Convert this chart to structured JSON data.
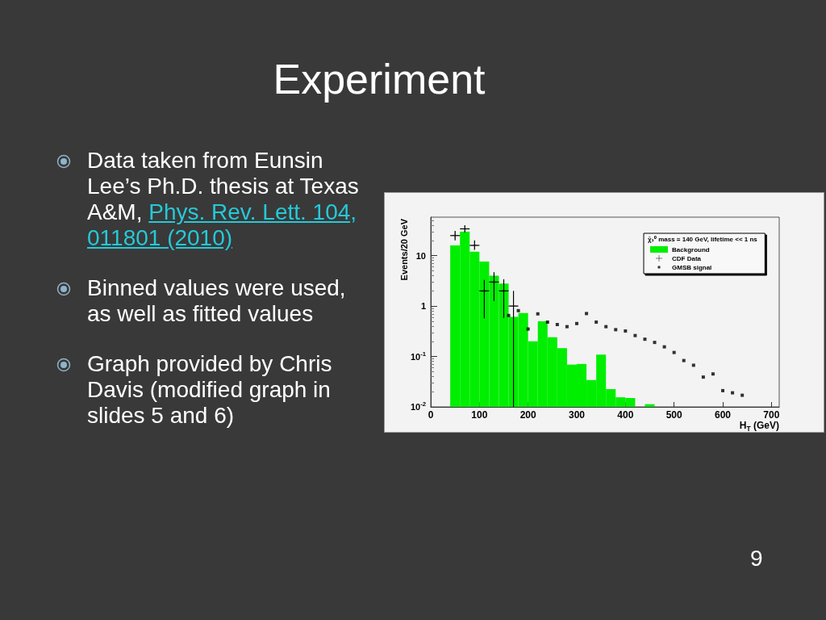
{
  "chart_data": {
    "type": "histogram",
    "title": "Experiment",
    "annotations": [
      "Data taken from Eunsin Lee’s Ph.D. thesis at Texas A&M,",
      "Phys. Rev. Lett. 104, 011801 (2010)",
      "Binned values were used, as well as fitted values",
      "Graph provided by Chris Davis (modified graph in slides 5 and 6)",
      "9"
    ],
    "xlabel": "H$_{T}$ (GeV)",
    "ylabel": "Events/20 GeV",
    "legend_title": "χ̃₁⁰ mass = 140 GeV, lifetime << 1 ns",
    "legend": "top right",
    "log": "y",
    "grid": false,
    "xlim": [
      0,
      716
    ],
    "xticks": [
      0,
      100,
      200,
      300,
      400,
      500,
      600,
      700
    ],
    "ylim": [
      0.01,
      58
    ],
    "yticks": [
      {
        "value": 0.01,
        "label": "10$^{-2}$"
      },
      {
        "value": 0.1,
        "label": "10$^{-1}$"
      },
      1,
      10
    ],
    "series": [
      {
        "name": "Background",
        "type": "histogram",
        "color": "#00ee00",
        "bins": [
          40,
          60,
          80,
          100,
          120,
          140,
          160,
          180,
          200,
          220,
          240,
          260,
          280,
          300,
          320,
          340,
          360,
          380,
          400,
          420,
          440,
          460
        ],
        "values": [
          16,
          30,
          12,
          7.6,
          4.0,
          2.8,
          0.61,
          0.73,
          0.2,
          0.5,
          0.24,
          0.146,
          0.069,
          0.071,
          0.034,
          0.109,
          0.0225,
          0.0155,
          0.015,
          null,
          0.0113
        ]
      },
      {
        "name": "CDF Data",
        "type": "scatter",
        "marker": "cross",
        "color": "#000000",
        "x": [
          50,
          70,
          90,
          110,
          130,
          150,
          170
        ],
        "values": [
          25,
          34,
          16,
          2,
          3,
          2,
          1
        ],
        "errors": [
          [
            20,
            31
          ],
          [
            29,
            40
          ],
          [
            13,
            20
          ],
          [
            0.57,
            3.3
          ],
          [
            1.26,
            4.7
          ],
          [
            0.58,
            3.4
          ],
          [
            0.01,
            2
          ]
        ],
        "xerrors": [
          10,
          10,
          10,
          10,
          10,
          10,
          10
        ]
      },
      {
        "name": "GMSB signal",
        "type": "scatter",
        "marker": "square",
        "color": "#000000",
        "x": [
          160,
          180,
          200,
          220,
          240,
          260,
          280,
          300,
          320,
          340,
          360,
          380,
          400,
          420,
          440,
          460,
          480,
          500,
          520,
          540,
          560,
          580,
          600,
          620,
          640
        ],
        "values": [
          0.65,
          0.81,
          0.35,
          0.7,
          0.48,
          0.43,
          0.39,
          0.45,
          0.71,
          0.48,
          0.39,
          0.34,
          0.32,
          0.26,
          0.22,
          0.19,
          0.155,
          0.12,
          0.083,
          0.067,
          0.039,
          0.045,
          0.021,
          0.019,
          0.017
        ]
      }
    ]
  }
}
